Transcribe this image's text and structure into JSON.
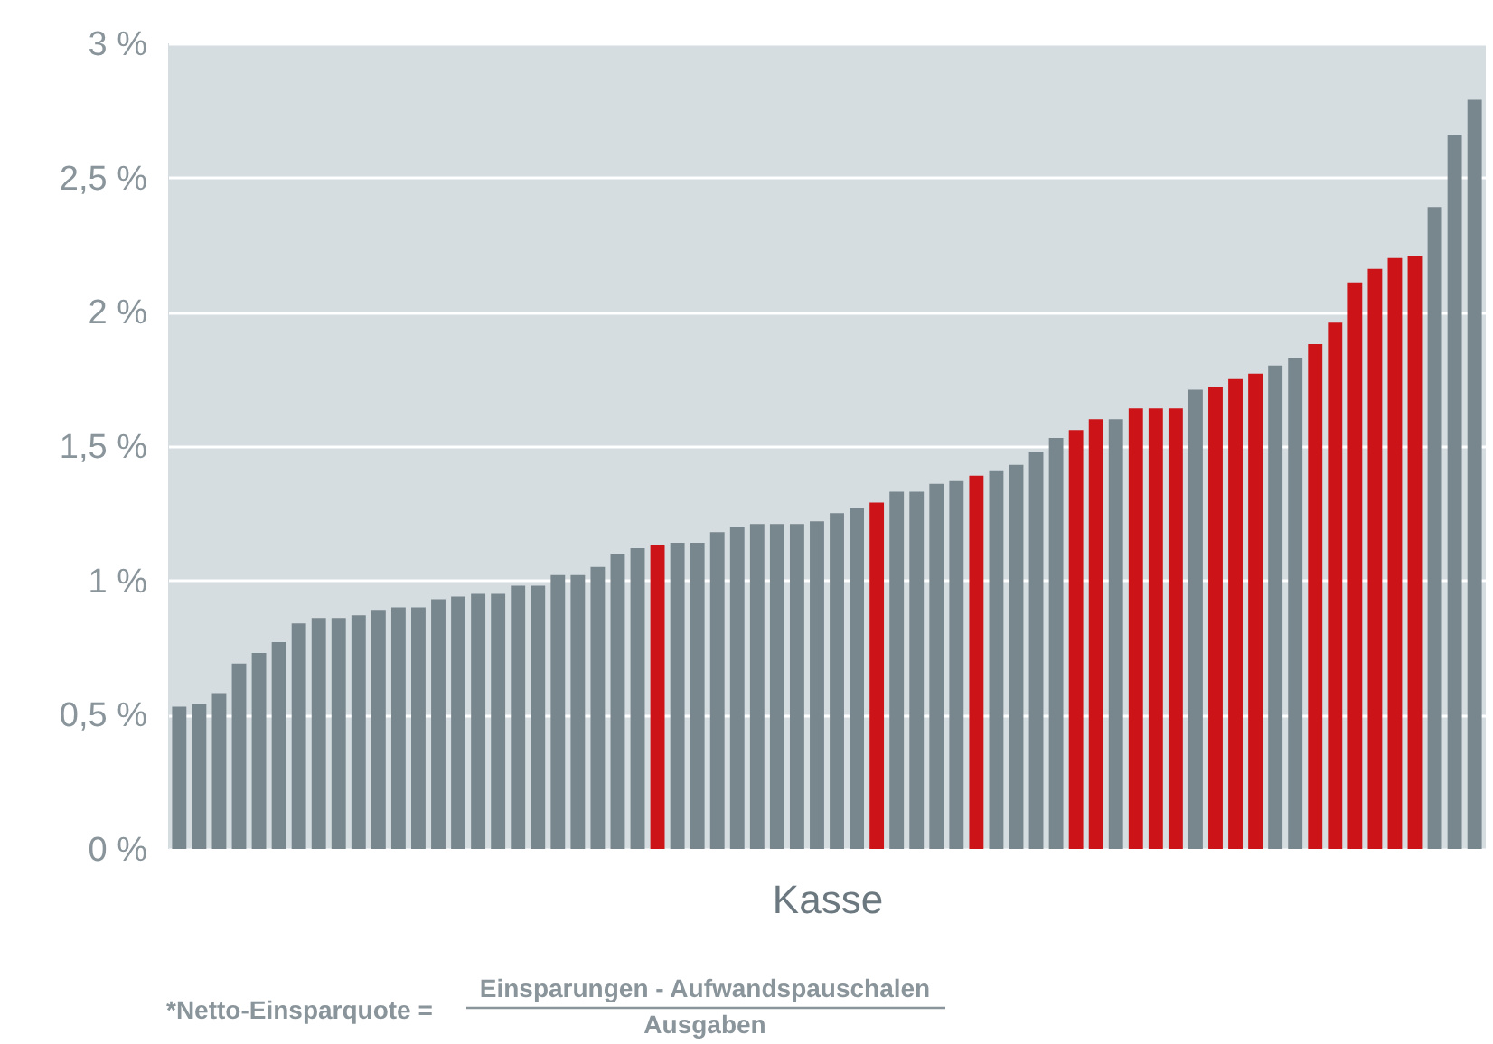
{
  "chart_data": {
    "type": "bar",
    "xlabel": "Kasse",
    "categories": [
      null,
      null,
      null,
      null,
      null,
      null,
      null,
      null,
      null,
      null,
      null,
      null,
      null,
      null,
      null,
      null,
      null,
      null,
      null,
      null,
      null,
      null,
      null,
      null,
      null,
      null,
      null,
      null,
      null,
      null,
      null,
      null,
      null,
      null,
      null,
      null,
      null,
      null,
      null,
      null,
      null,
      null,
      null,
      null,
      null,
      null,
      null,
      null,
      null,
      null,
      null,
      null,
      null,
      null,
      null,
      null,
      null,
      null,
      null,
      null,
      null,
      null,
      null,
      null,
      null,
      null
    ],
    "values": [
      0.53,
      0.54,
      0.58,
      0.69,
      0.73,
      0.77,
      0.84,
      0.86,
      0.86,
      0.87,
      0.89,
      0.9,
      0.9,
      0.93,
      0.94,
      0.95,
      0.95,
      0.98,
      0.98,
      1.02,
      1.02,
      1.05,
      1.1,
      1.12,
      1.13,
      1.14,
      1.14,
      1.18,
      1.2,
      1.21,
      1.21,
      1.21,
      1.22,
      1.25,
      1.27,
      1.29,
      1.33,
      1.33,
      1.36,
      1.37,
      1.39,
      1.41,
      1.43,
      1.48,
      1.53,
      1.56,
      1.6,
      1.6,
      1.64,
      1.64,
      1.64,
      1.71,
      1.72,
      1.75,
      1.77,
      1.8,
      1.83,
      1.88,
      1.96,
      2.11,
      2.16,
      2.2,
      2.21,
      2.39,
      2.66,
      2.79
    ],
    "colors": [
      "#78868e",
      "#78868e",
      "#78868e",
      "#78868e",
      "#78868e",
      "#78868e",
      "#78868e",
      "#78868e",
      "#78868e",
      "#78868e",
      "#78868e",
      "#78868e",
      "#78868e",
      "#78868e",
      "#78868e",
      "#78868e",
      "#78868e",
      "#78868e",
      "#78868e",
      "#78868e",
      "#78868e",
      "#78868e",
      "#78868e",
      "#78868e",
      "#cc1418",
      "#78868e",
      "#78868e",
      "#78868e",
      "#78868e",
      "#78868e",
      "#78868e",
      "#78868e",
      "#78868e",
      "#78868e",
      "#78868e",
      "#cc1418",
      "#78868e",
      "#78868e",
      "#78868e",
      "#78868e",
      "#cc1418",
      "#78868e",
      "#78868e",
      "#78868e",
      "#78868e",
      "#cc1418",
      "#cc1418",
      "#78868e",
      "#cc1418",
      "#cc1418",
      "#cc1418",
      "#78868e",
      "#cc1418",
      "#cc1418",
      "#cc1418",
      "#78868e",
      "#78868e",
      "#cc1418",
      "#cc1418",
      "#cc1418",
      "#cc1418",
      "#cc1418",
      "#cc1418",
      "#78868e",
      "#78868e",
      "#78868e"
    ],
    "ylim": [
      0,
      3
    ],
    "yticks": [
      {
        "value": 0,
        "label": "0 %"
      },
      {
        "value": 0.5,
        "label": "0,5 %"
      },
      {
        "value": 1,
        "label": "1 %"
      },
      {
        "value": 1.5,
        "label": "1,5 %"
      },
      {
        "value": 2,
        "label": "2 %"
      },
      {
        "value": 2.5,
        "label": "2,5 %"
      },
      {
        "value": 3,
        "label": "3 %"
      }
    ],
    "grid": "y",
    "tick_labels": "y",
    "annotations": [
      "*Netto-Einsparquote =",
      "Einsparungen - Aufwandspauschalen",
      "Ausgaben"
    ]
  }
}
